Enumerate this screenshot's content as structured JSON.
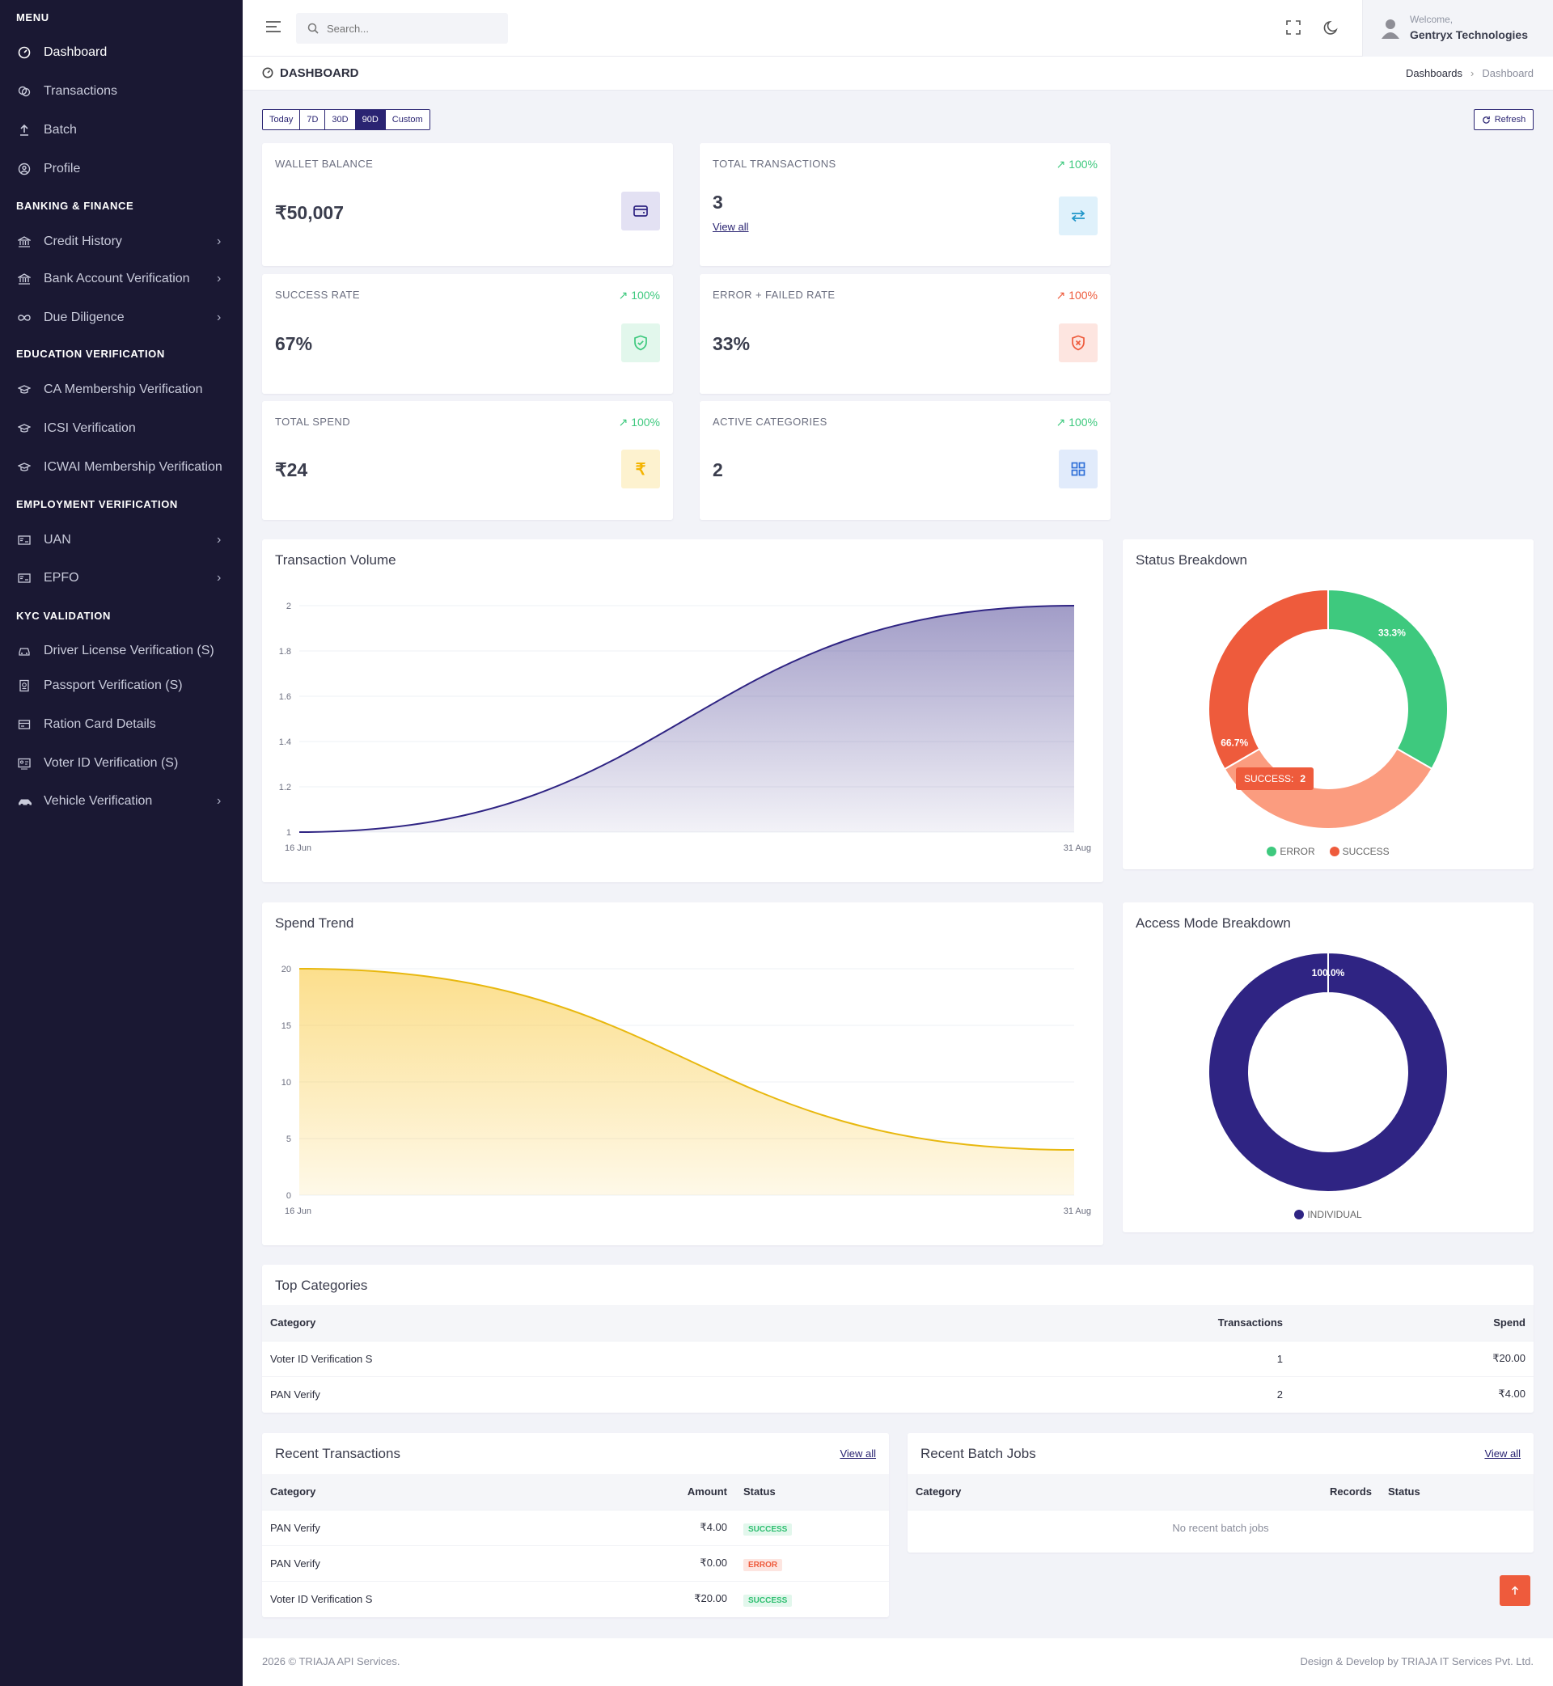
{
  "sidebar": {
    "menu_title": "MENU",
    "items_main": [
      {
        "label": "Dashboard",
        "icon": "dashboard-icon"
      },
      {
        "label": "Transactions",
        "icon": "coins-icon"
      },
      {
        "label": "Batch",
        "icon": "upload-icon"
      },
      {
        "label": "Profile",
        "icon": "user-circle-icon"
      }
    ],
    "sec_banking": "BANKING & FINANCE",
    "items_banking": [
      {
        "label": "Credit History"
      },
      {
        "label": "Bank Account Verification"
      },
      {
        "label": "Due Diligence"
      }
    ],
    "sec_education": "EDUCATION VERIFICATION",
    "items_education": [
      {
        "label": "CA Membership Verification"
      },
      {
        "label": "ICSI Verification"
      },
      {
        "label": "ICWAI Membership Verification"
      }
    ],
    "sec_employment": "EMPLOYMENT VERIFICATION",
    "items_employment": [
      {
        "label": "UAN"
      },
      {
        "label": "EPFO"
      }
    ],
    "sec_kyc": "KYC VALIDATION",
    "items_kyc": [
      {
        "label": "Driver License Verification (S)"
      },
      {
        "label": "Passport Verification (S)"
      },
      {
        "label": "Ration Card Details"
      },
      {
        "label": "Voter ID Verification (S)"
      },
      {
        "label": "Vehicle Verification"
      }
    ]
  },
  "header": {
    "search_placeholder": "Search...",
    "welcome": "Welcome,",
    "company": "Gentryx Technologies"
  },
  "page": {
    "title": "DASHBOARD",
    "breadcrumb_parent": "Dashboards",
    "breadcrumb_current": "Dashboard"
  },
  "ranges": [
    "Today",
    "7D",
    "30D",
    "90D",
    "Custom"
  ],
  "active_range": "90D",
  "refresh_label": "Refresh",
  "stats": {
    "wallet": {
      "label": "WALLET BALANCE",
      "value": "₹50,007"
    },
    "total_tx": {
      "label": "TOTAL TRANSACTIONS",
      "value": "3",
      "trend": "100%",
      "link": "View all"
    },
    "success": {
      "label": "SUCCESS RATE",
      "value": "67%",
      "trend": "100%"
    },
    "error": {
      "label": "ERROR + FAILED RATE",
      "value": "33%",
      "trend": "100%"
    },
    "spend": {
      "label": "TOTAL SPEND",
      "value": "₹24",
      "trend": "100%"
    },
    "categories": {
      "label": "ACTIVE CATEGORIES",
      "value": "2",
      "trend": "100%"
    }
  },
  "colors": {
    "primary": "#2f2483",
    "success": "#3ec97e",
    "error": "#ee5b3c",
    "success_salmon": "#fb9c7f",
    "spend": "#f4c21f"
  },
  "chart_data": [
    {
      "type": "area",
      "title": "Transaction Volume",
      "x": [
        "16 Jun",
        "31 Aug"
      ],
      "y": [
        1,
        2
      ],
      "ylim": [
        1,
        2
      ],
      "yticks": [
        "2",
        "1.8",
        "1.6",
        "1.4",
        "1.2",
        "1"
      ],
      "grid": true
    },
    {
      "type": "pie",
      "title": "Status Breakdown",
      "labels": [
        "ERROR",
        "SUCCESS"
      ],
      "values": [
        33.3,
        66.7
      ],
      "tooltip_label": "SUCCESS:",
      "tooltip_value": "2",
      "legend": "bottom"
    },
    {
      "type": "area",
      "title": "Spend Trend",
      "x": [
        "16 Jun",
        "31 Aug"
      ],
      "y": [
        20,
        4
      ],
      "ylim": [
        0,
        20
      ],
      "yticks": [
        "20",
        "15",
        "10",
        "5",
        "0"
      ],
      "grid": true
    },
    {
      "type": "pie",
      "title": "Access Mode Breakdown",
      "labels": [
        "INDIVIDUAL"
      ],
      "values": [
        100.0
      ],
      "legend": "bottom"
    }
  ],
  "labels_pct": {
    "error": "33.3%",
    "success": "66.7%",
    "individual": "100.0%"
  },
  "top_categories": {
    "title": "Top Categories",
    "headers": [
      "Category",
      "Transactions",
      "Spend"
    ],
    "rows": [
      {
        "category": "Voter ID Verification S",
        "tx": "1",
        "spend": "₹20.00"
      },
      {
        "category": "PAN Verify",
        "tx": "2",
        "spend": "₹4.00"
      }
    ]
  },
  "recent_tx": {
    "title": "Recent Transactions",
    "view_all": "View all",
    "headers": [
      "Category",
      "Amount",
      "Status"
    ],
    "rows": [
      {
        "category": "PAN Verify",
        "amount": "₹4.00",
        "status": "SUCCESS"
      },
      {
        "category": "PAN Verify",
        "amount": "₹0.00",
        "status": "ERROR"
      },
      {
        "category": "Voter ID Verification S",
        "amount": "₹20.00",
        "status": "SUCCESS"
      }
    ]
  },
  "recent_batch": {
    "title": "Recent Batch Jobs",
    "view_all": "View all",
    "headers": [
      "Category",
      "Records",
      "Status"
    ],
    "empty": "No recent batch jobs"
  },
  "footer": {
    "left": "2026 © TRIAJA API Services.",
    "right": "Design & Develop by TRIAJA IT Services Pvt. Ltd."
  }
}
